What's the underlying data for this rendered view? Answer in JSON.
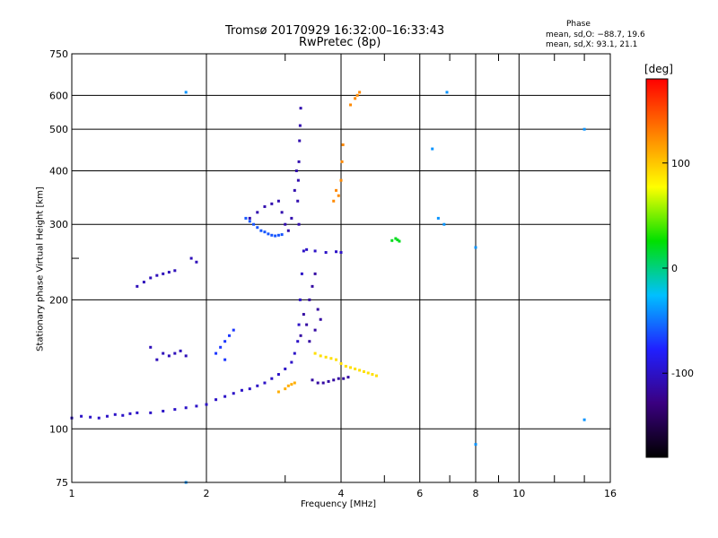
{
  "chart_data": {
    "type": "scatter",
    "title": "Tromsø 20170929 16:32:00–16:33:43",
    "subtitle": "RwPretec (8p)",
    "xlabel": "Frequency [MHz]",
    "ylabel": "Stationary phase Virtual Height [km]",
    "x_scale": "log",
    "y_scale": "log",
    "xlim": [
      1,
      16
    ],
    "ylim": [
      75,
      750
    ],
    "x_ticks": [
      1,
      2,
      4,
      6,
      8,
      10,
      16
    ],
    "y_ticks": [
      75,
      100,
      200,
      300,
      400,
      500,
      600,
      750
    ],
    "x_minor": [
      3,
      5,
      7,
      9,
      12,
      14
    ],
    "y_minor": [
      250
    ],
    "grid": true,
    "phase_stats": {
      "header": "Phase",
      "o_mode": "mean, sd,O: −88.7, 19.6",
      "x_mode": "mean, sd,X:  93.1, 21.1"
    },
    "colorbar": {
      "label": "[deg]",
      "ticks": [
        100,
        0,
        -100
      ],
      "range": [
        -180,
        180
      ],
      "colors": [
        "#000000",
        "#3a0080",
        "#2020ff",
        "#00c0ff",
        "#00e000",
        "#ffff00",
        "#ff8000",
        "#ff0000"
      ]
    },
    "series": [
      {
        "points": [
          [
            1.0,
            106
          ],
          [
            1.05,
            107
          ],
          [
            1.1,
            106.5
          ],
          [
            1.15,
            106
          ],
          [
            1.2,
            107
          ],
          [
            1.25,
            108
          ],
          [
            1.3,
            107.5
          ],
          [
            1.35,
            108.5
          ],
          [
            1.4,
            109
          ],
          [
            1.5,
            109
          ],
          [
            1.6,
            110
          ],
          [
            1.7,
            111
          ],
          [
            1.8,
            112
          ],
          [
            1.9,
            113
          ],
          [
            2.0,
            114
          ],
          [
            2.1,
            117
          ],
          [
            2.2,
            119
          ],
          [
            2.3,
            121
          ],
          [
            2.4,
            123
          ],
          [
            2.5,
            124
          ],
          [
            2.6,
            126
          ],
          [
            2.7,
            128
          ],
          [
            2.8,
            131
          ],
          [
            2.9,
            134
          ],
          [
            3.0,
            138
          ],
          [
            3.1,
            143
          ],
          [
            3.15,
            150
          ],
          [
            3.2,
            160
          ],
          [
            3.22,
            175
          ],
          [
            3.24,
            200
          ],
          [
            3.27,
            230
          ],
          [
            3.3,
            260
          ],
          [
            3.35,
            262
          ],
          [
            3.5,
            260
          ],
          [
            3.7,
            258
          ],
          [
            3.9,
            259
          ],
          [
            4.0,
            258
          ]
        ],
        "phase": -100
      },
      {
        "points": [
          [
            3.22,
            300
          ],
          [
            3.2,
            340
          ],
          [
            3.21,
            380
          ],
          [
            3.22,
            420
          ],
          [
            3.23,
            470
          ],
          [
            3.24,
            510
          ],
          [
            3.25,
            560
          ],
          [
            3.1,
            310
          ],
          [
            3.05,
            290
          ],
          [
            3.0,
            300
          ],
          [
            2.95,
            320
          ],
          [
            2.9,
            340
          ],
          [
            3.15,
            360
          ],
          [
            3.18,
            400
          ],
          [
            2.5,
            310
          ],
          [
            2.6,
            320
          ],
          [
            2.7,
            330
          ],
          [
            2.8,
            335
          ]
        ],
        "phase": -110
      },
      {
        "points": [
          [
            2.45,
            310
          ],
          [
            2.5,
            305
          ],
          [
            2.55,
            300
          ],
          [
            2.6,
            295
          ],
          [
            2.65,
            290
          ],
          [
            2.7,
            288
          ],
          [
            2.75,
            285
          ],
          [
            2.8,
            283
          ],
          [
            2.85,
            282
          ],
          [
            2.9,
            283
          ],
          [
            2.95,
            284
          ]
        ],
        "phase": -60
      },
      {
        "points": [
          [
            3.4,
            200
          ],
          [
            3.45,
            215
          ],
          [
            3.5,
            230
          ],
          [
            3.55,
            190
          ],
          [
            3.6,
            180
          ],
          [
            3.5,
            170
          ],
          [
            3.3,
            185
          ],
          [
            3.35,
            175
          ],
          [
            3.25,
            165
          ],
          [
            3.4,
            160
          ],
          [
            3.45,
            130
          ],
          [
            3.55,
            128
          ],
          [
            3.65,
            128
          ],
          [
            3.75,
            129
          ],
          [
            3.85,
            130
          ],
          [
            3.95,
            131
          ],
          [
            4.05,
            131
          ],
          [
            4.15,
            132
          ]
        ],
        "phase": -115
      },
      {
        "points": [
          [
            3.5,
            150
          ],
          [
            3.6,
            148
          ],
          [
            3.7,
            147
          ],
          [
            3.8,
            146
          ],
          [
            3.9,
            145
          ],
          [
            4.0,
            142
          ],
          [
            4.1,
            140
          ],
          [
            4.2,
            139
          ],
          [
            4.3,
            138
          ],
          [
            4.4,
            137
          ],
          [
            4.5,
            136
          ],
          [
            4.6,
            135
          ],
          [
            4.7,
            134
          ],
          [
            4.8,
            133
          ]
        ],
        "phase": 90
      },
      {
        "points": [
          [
            2.9,
            122
          ],
          [
            3.0,
            124
          ],
          [
            3.05,
            126
          ],
          [
            3.1,
            127
          ],
          [
            3.15,
            128
          ]
        ],
        "phase": 110
      },
      {
        "points": [
          [
            4.0,
            380
          ],
          [
            4.02,
            420
          ],
          [
            4.04,
            460
          ],
          [
            3.95,
            350
          ],
          [
            3.85,
            340
          ],
          [
            3.9,
            360
          ],
          [
            4.2,
            570
          ],
          [
            4.3,
            590
          ],
          [
            4.35,
            600
          ],
          [
            4.4,
            610
          ]
        ],
        "phase": 125
      },
      {
        "points": [
          [
            5.2,
            275
          ],
          [
            5.3,
            278
          ],
          [
            5.35,
            276
          ],
          [
            5.4,
            274
          ]
        ],
        "phase": 20
      },
      {
        "points": [
          [
            1.5,
            225
          ],
          [
            1.55,
            228
          ],
          [
            1.6,
            230
          ],
          [
            1.65,
            232
          ],
          [
            1.7,
            234
          ],
          [
            1.85,
            250
          ],
          [
            1.9,
            245
          ],
          [
            1.4,
            215
          ],
          [
            1.45,
            220
          ]
        ],
        "phase": -105
      },
      {
        "points": [
          [
            1.6,
            150
          ],
          [
            1.65,
            148
          ],
          [
            1.7,
            150
          ],
          [
            1.75,
            152
          ],
          [
            1.8,
            148
          ],
          [
            1.5,
            155
          ],
          [
            1.55,
            145
          ]
        ],
        "phase": -105
      },
      {
        "points": [
          [
            2.1,
            150
          ],
          [
            2.15,
            155
          ],
          [
            2.2,
            160
          ],
          [
            2.25,
            165
          ],
          [
            2.3,
            170
          ],
          [
            2.2,
            145
          ]
        ],
        "phase": -70
      },
      {
        "points": [
          [
            6.9,
            610
          ],
          [
            6.4,
            450
          ],
          [
            6.6,
            310
          ],
          [
            6.8,
            300
          ],
          [
            8.0,
            265
          ],
          [
            14.0,
            500
          ],
          [
            14.0,
            105
          ],
          [
            8.0,
            92
          ],
          [
            1.8,
            610
          ],
          [
            1.8,
            75
          ]
        ],
        "phase": -40
      }
    ]
  }
}
